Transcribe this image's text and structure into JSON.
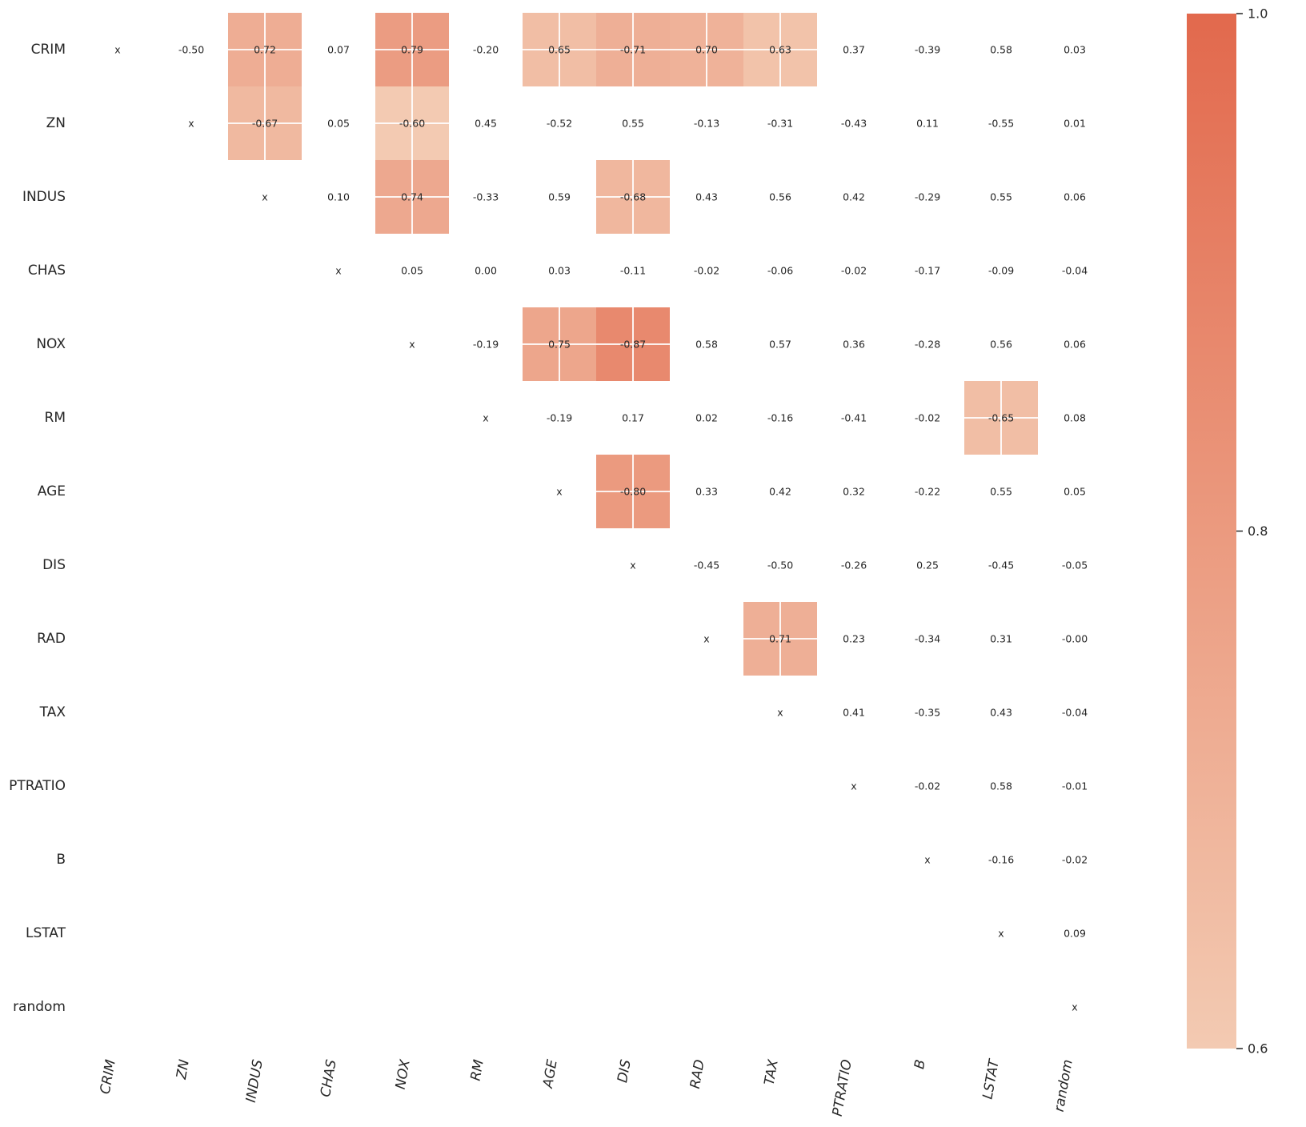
{
  "chart_data": {
    "type": "heatmap",
    "title": "",
    "variables": [
      "CRIM",
      "ZN",
      "INDUS",
      "CHAS",
      "NOX",
      "RM",
      "AGE",
      "DIS",
      "RAD",
      "TAX",
      "PTRATIO",
      "B",
      "LSTAT",
      "random"
    ],
    "diagonal_marker": "x",
    "values": [
      [
        "x",
        "-0.50",
        "0.72",
        "0.07",
        "0.79",
        "-0.20",
        "0.65",
        "-0.71",
        "0.70",
        "0.63",
        "0.37",
        "-0.39",
        "0.58",
        "0.03"
      ],
      [
        "",
        "x",
        "-0.67",
        "0.05",
        "-0.60",
        "0.45",
        "-0.52",
        "0.55",
        "-0.13",
        "-0.31",
        "-0.43",
        "0.11",
        "-0.55",
        "0.01"
      ],
      [
        "",
        "",
        "x",
        "0.10",
        "0.74",
        "-0.33",
        "0.59",
        "-0.68",
        "0.43",
        "0.56",
        "0.42",
        "-0.29",
        "0.55",
        "0.06"
      ],
      [
        "",
        "",
        "",
        "x",
        "0.05",
        "0.00",
        "0.03",
        "-0.11",
        "-0.02",
        "-0.06",
        "-0.02",
        "-0.17",
        "-0.09",
        "-0.04"
      ],
      [
        "",
        "",
        "",
        "",
        "x",
        "-0.19",
        "0.75",
        "-0.87",
        "0.58",
        "0.57",
        "0.36",
        "-0.28",
        "0.56",
        "0.06"
      ],
      [
        "",
        "",
        "",
        "",
        "",
        "x",
        "-0.19",
        "0.17",
        "0.02",
        "-0.16",
        "-0.41",
        "-0.02",
        "-0.65",
        "0.08"
      ],
      [
        "",
        "",
        "",
        "",
        "",
        "",
        "x",
        "-0.80",
        "0.33",
        "0.42",
        "0.32",
        "-0.22",
        "0.55",
        "0.05"
      ],
      [
        "",
        "",
        "",
        "",
        "",
        "",
        "",
        "x",
        "-0.45",
        "-0.50",
        "-0.26",
        "0.25",
        "-0.45",
        "-0.05"
      ],
      [
        "",
        "",
        "",
        "",
        "",
        "",
        "",
        "",
        "x",
        "0.71",
        "0.23",
        "-0.34",
        "0.31",
        "-0.00"
      ],
      [
        "",
        "",
        "",
        "",
        "",
        "",
        "",
        "",
        "",
        "x",
        "0.41",
        "-0.35",
        "0.43",
        "-0.04"
      ],
      [
        "",
        "",
        "",
        "",
        "",
        "",
        "",
        "",
        "",
        "",
        "x",
        "-0.02",
        "0.58",
        "-0.01"
      ],
      [
        "",
        "",
        "",
        "",
        "",
        "",
        "",
        "",
        "",
        "",
        "",
        "x",
        "-0.16",
        "-0.02"
      ],
      [
        "",
        "",
        "",
        "",
        "",
        "",
        "",
        "",
        "",
        "",
        "",
        "",
        "x",
        "0.09"
      ],
      [
        "",
        "",
        "",
        "",
        "",
        "",
        "",
        "",
        "",
        "",
        "",
        "",
        "",
        "x"
      ]
    ],
    "highlighted_cells": [
      {
        "row": 0,
        "col": 2,
        "value": 0.72
      },
      {
        "row": 0,
        "col": 4,
        "value": 0.79
      },
      {
        "row": 0,
        "col": 6,
        "value": 0.65
      },
      {
        "row": 0,
        "col": 7,
        "value": 0.71
      },
      {
        "row": 0,
        "col": 8,
        "value": 0.7
      },
      {
        "row": 0,
        "col": 9,
        "value": 0.63
      },
      {
        "row": 1,
        "col": 2,
        "value": 0.67
      },
      {
        "row": 1,
        "col": 4,
        "value": 0.6
      },
      {
        "row": 2,
        "col": 4,
        "value": 0.74
      },
      {
        "row": 2,
        "col": 7,
        "value": 0.68
      },
      {
        "row": 4,
        "col": 6,
        "value": 0.75
      },
      {
        "row": 4,
        "col": 7,
        "value": 0.87
      },
      {
        "row": 5,
        "col": 12,
        "value": 0.65
      },
      {
        "row": 6,
        "col": 7,
        "value": 0.8
      },
      {
        "row": 8,
        "col": 9,
        "value": 0.71
      }
    ],
    "colorbar": {
      "range": [
        0.6,
        1.0
      ],
      "ticks": [
        "1.0",
        "0.8",
        "0.6"
      ],
      "low_color": "#f3cab2",
      "high_color": "#e2694d"
    },
    "grid_line_color": "#ffffff"
  }
}
